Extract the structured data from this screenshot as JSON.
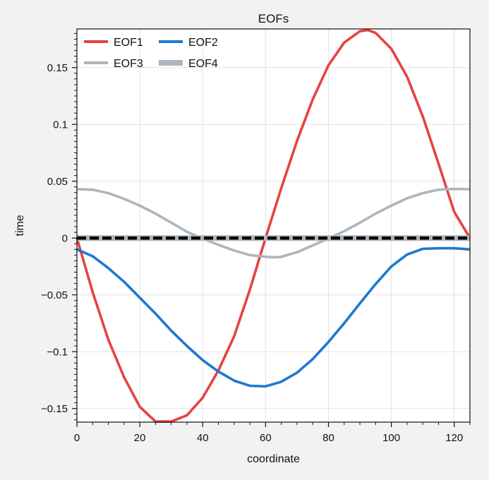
{
  "chart_data": {
    "type": "line",
    "title": "EOFs",
    "xlabel": "coordinate",
    "ylabel": "time",
    "xlim": [
      0,
      125
    ],
    "ylim": [
      -0.162,
      0.184
    ],
    "x_ticks": [
      0,
      20,
      40,
      60,
      80,
      100,
      120
    ],
    "x_tick_labels": [
      "0",
      "20",
      "40",
      "60",
      "80",
      "100",
      "120"
    ],
    "y_ticks": [
      -0.15,
      -0.1,
      -0.05,
      0,
      0.05,
      0.1,
      0.15
    ],
    "y_tick_labels": [
      "−0.15",
      "−0.1",
      "−0.05",
      "0",
      "0.05",
      "0.1",
      "0.15"
    ],
    "grid": true,
    "legend": {
      "position": "top-left",
      "columns": 2
    },
    "series": [
      {
        "name": "EOF1",
        "color": "#e84142",
        "x": [
          0,
          5,
          10,
          15,
          20,
          25,
          30,
          35,
          40,
          45,
          50,
          55,
          60,
          65,
          70,
          75,
          80,
          85,
          90,
          92.5,
          95,
          100,
          105,
          110,
          115,
          120,
          125
        ],
        "values": [
          0,
          -0.0475,
          -0.0895,
          -0.1225,
          -0.1485,
          -0.1615,
          -0.1615,
          -0.156,
          -0.1405,
          -0.1165,
          -0.0865,
          -0.0455,
          0.0,
          0.044,
          0.0855,
          0.122,
          0.152,
          0.172,
          0.182,
          0.183,
          0.1805,
          0.1665,
          0.142,
          0.107,
          0.0655,
          0.023,
          0.0
        ]
      },
      {
        "name": "EOF2",
        "color": "#1f78d1",
        "x": [
          0,
          5,
          10,
          15,
          20,
          25,
          30,
          35,
          40,
          45,
          50,
          55,
          60,
          65,
          70,
          75,
          80,
          85,
          90,
          95,
          100,
          105,
          110,
          115,
          120,
          125
        ],
        "values": [
          -0.01,
          -0.016,
          -0.0265,
          -0.0385,
          -0.0525,
          -0.0665,
          -0.0815,
          -0.095,
          -0.1075,
          -0.1175,
          -0.1255,
          -0.13,
          -0.1305,
          -0.1265,
          -0.1185,
          -0.1065,
          -0.0915,
          -0.075,
          -0.0575,
          -0.0405,
          -0.025,
          -0.0145,
          -0.0095,
          -0.009,
          -0.009,
          -0.01
        ]
      },
      {
        "name": "EOF3",
        "color": "#adb5bd",
        "x": [
          0,
          5,
          10,
          15,
          20,
          25,
          30,
          35,
          40,
          45,
          50,
          55,
          60,
          63,
          65,
          70,
          75,
          80,
          85,
          90,
          95,
          100,
          105,
          110,
          115,
          120,
          125
        ],
        "values": [
          0.043,
          0.0425,
          0.0395,
          0.0345,
          0.0285,
          0.0215,
          0.0135,
          0.0055,
          -0.0005,
          -0.006,
          -0.011,
          -0.015,
          -0.0165,
          -0.017,
          -0.0165,
          -0.0125,
          -0.0065,
          -0.0005,
          0.006,
          0.0135,
          0.0215,
          0.0285,
          0.035,
          0.0395,
          0.0425,
          0.0432,
          0.043
        ]
      },
      {
        "name": "EOF4",
        "color": "#adb5bd",
        "x": [
          0,
          125
        ],
        "values": [
          0,
          0
        ]
      }
    ]
  }
}
